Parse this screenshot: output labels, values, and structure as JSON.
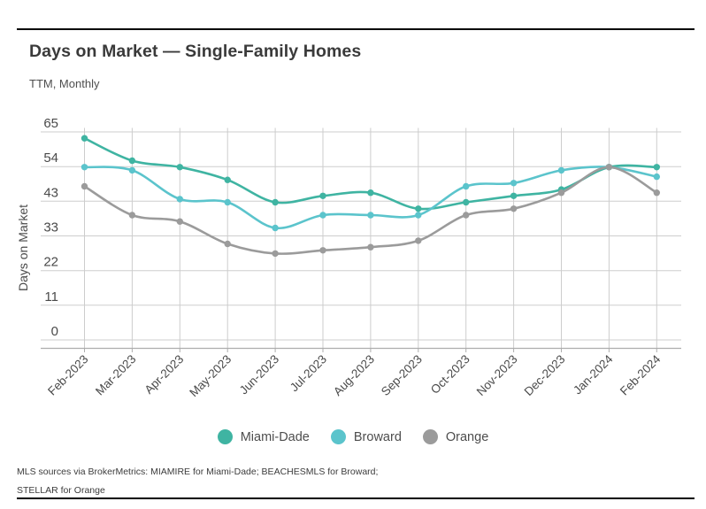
{
  "page": {
    "title": "Days on Market — Single-Family Homes",
    "subtitle": "TTM, Monthly",
    "footer_line1": "MLS sources via BrokerMetrics: MIAMIRE for Miami-Dade; BEACHESMLS for Broward;",
    "footer_line2": "STELLAR for Orange"
  },
  "chart_data": {
    "type": "line",
    "title": "Days on Market — Single-Family Homes",
    "subtitle": "TTM, Monthly",
    "xlabel": "",
    "ylabel": "Days on Market",
    "x": [
      "Feb-2023",
      "Mar-2023",
      "Apr-2023",
      "May-2023",
      "Jun-2023",
      "Jul-2023",
      "Aug-2023",
      "Sep-2023",
      "Oct-2023",
      "Nov-2023",
      "Dec-2023",
      "Jan-2024",
      "Feb-2024"
    ],
    "y_tick_labels": [
      "0",
      "11",
      "22",
      "33",
      "43",
      "54",
      "65"
    ],
    "ylim": [
      0,
      65
    ],
    "grid": true,
    "marker": "circle",
    "legend_position": "bottom",
    "series": [
      {
        "name": "Miami-Dade",
        "color": "#3fb4a2",
        "values": [
          63,
          56,
          54,
          50,
          43,
          45,
          46,
          41,
          43,
          45,
          47,
          54,
          54
        ]
      },
      {
        "name": "Broward",
        "color": "#5bc4cc",
        "values": [
          54,
          53,
          44,
          43,
          35,
          39,
          39,
          39,
          48,
          49,
          53,
          54,
          51
        ]
      },
      {
        "name": "Orange",
        "color": "#9b9b9b",
        "values": [
          48,
          39,
          37,
          30,
          27,
          28,
          29,
          31,
          39,
          41,
          46,
          54,
          46
        ]
      }
    ]
  },
  "colors": {
    "grid_line": "#cdcdcd",
    "axis_line": "#adadad",
    "tick_text": "#4a4a4a",
    "title_text": "#3a3a3a",
    "rule": "#000000",
    "background": "#ffffff"
  }
}
